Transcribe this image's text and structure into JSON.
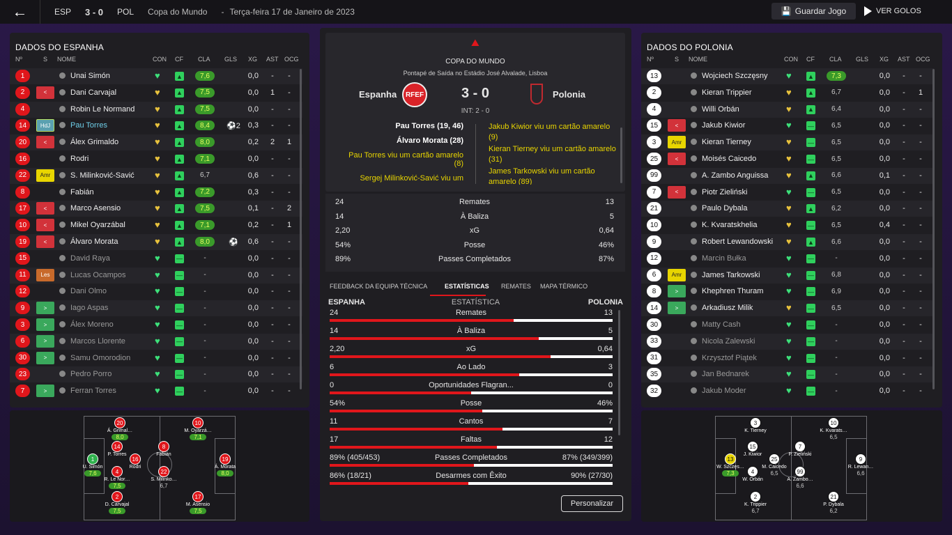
{
  "topbar": {
    "home": "ESP",
    "score": "3 - 0",
    "away": "POL",
    "competition": "Copa do Mundo",
    "sep": "-",
    "date": "Terça-feira 17 de Janeiro de 2023",
    "save": "Guardar Jogo",
    "goals": "VER GOLOS"
  },
  "left": {
    "title": "DADOS DO ESPANHA",
    "headers": {
      "no": "Nº",
      "s": "S",
      "name": "NOME",
      "con": "CON",
      "cf": "CF",
      "cla": "CLA",
      "gls": "GLS",
      "xg": "XG",
      "ast": "AST",
      "ocg": "OCG"
    },
    "players": [
      {
        "n": "1",
        "s": "",
        "name": "Unai Simón",
        "heart": "g",
        "cla": "7,6",
        "gls": "",
        "xg": "0,0",
        "ast": "-",
        "ocg": "-"
      },
      {
        "n": "2",
        "s": "out",
        "name": "Dani Carvajal",
        "heart": "y",
        "cla": "7,5",
        "gls": "",
        "xg": "0,0",
        "ast": "1",
        "ocg": "-"
      },
      {
        "n": "4",
        "s": "",
        "name": "Robin Le Normand",
        "heart": "y",
        "cla": "7,5",
        "gls": "",
        "xg": "0,0",
        "ast": "-",
        "ocg": "-"
      },
      {
        "n": "14",
        "s": "HdJ",
        "name": "Pau Torres",
        "heart": "y",
        "cla": "8,4",
        "gls": "⚽2",
        "xg": "0,3",
        "ast": "-",
        "ocg": "-"
      },
      {
        "n": "20",
        "s": "out",
        "name": "Álex Grimaldo",
        "heart": "y",
        "cla": "8,0",
        "gls": "",
        "xg": "0,2",
        "ast": "2",
        "ocg": "1"
      },
      {
        "n": "16",
        "s": "",
        "name": "Rodri",
        "heart": "y",
        "cla": "7,1",
        "gls": "",
        "xg": "0,0",
        "ast": "-",
        "ocg": "-"
      },
      {
        "n": "22",
        "s": "Amr",
        "name": "S. Milinković-Savić",
        "heart": "y",
        "cla": "6,7",
        "gls": "",
        "xg": "0,6",
        "ast": "-",
        "ocg": "-"
      },
      {
        "n": "8",
        "s": "",
        "name": "Fabián",
        "heart": "y",
        "cla": "7,2",
        "gls": "",
        "xg": "0,3",
        "ast": "-",
        "ocg": "-"
      },
      {
        "n": "17",
        "s": "out",
        "name": "Marco Asensio",
        "heart": "y",
        "cla": "7,5",
        "gls": "",
        "xg": "0,1",
        "ast": "-",
        "ocg": "2"
      },
      {
        "n": "10",
        "s": "out",
        "name": "Mikel Oyarzábal",
        "heart": "y",
        "cla": "7,1",
        "gls": "",
        "xg": "0,2",
        "ast": "-",
        "ocg": "1"
      },
      {
        "n": "19",
        "s": "out",
        "name": "Álvaro Morata",
        "heart": "y",
        "cla": "8,0",
        "gls": "⚽",
        "xg": "0,6",
        "ast": "-",
        "ocg": "-"
      },
      {
        "n": "15",
        "s": "",
        "name": "David Raya",
        "heart": "g",
        "cla": "-",
        "gls": "",
        "xg": "0,0",
        "ast": "-",
        "ocg": "-"
      },
      {
        "n": "11",
        "s": "Les",
        "name": "Lucas Ocampos",
        "heart": "g",
        "cla": "-",
        "gls": "",
        "xg": "0,0",
        "ast": "-",
        "ocg": "-"
      },
      {
        "n": "12",
        "s": "",
        "name": "Dani Olmo",
        "heart": "g",
        "cla": "-",
        "gls": "",
        "xg": "0,0",
        "ast": "-",
        "ocg": "-"
      },
      {
        "n": "9",
        "s": "in",
        "name": "Iago Aspas",
        "heart": "g",
        "cla": "-",
        "gls": "",
        "xg": "0,0",
        "ast": "-",
        "ocg": "-"
      },
      {
        "n": "3",
        "s": "in",
        "name": "Álex Moreno",
        "heart": "g",
        "cla": "-",
        "gls": "",
        "xg": "0,0",
        "ast": "-",
        "ocg": "-"
      },
      {
        "n": "6",
        "s": "in",
        "name": "Marcos Llorente",
        "heart": "g",
        "cla": "-",
        "gls": "",
        "xg": "0,0",
        "ast": "-",
        "ocg": "-"
      },
      {
        "n": "30",
        "s": "in",
        "name": "Samu Omorodion",
        "heart": "g",
        "cla": "-",
        "gls": "",
        "xg": "0,0",
        "ast": "-",
        "ocg": "-"
      },
      {
        "n": "23",
        "s": "",
        "name": "Pedro Porro",
        "heart": "g",
        "cla": "-",
        "gls": "",
        "xg": "0,0",
        "ast": "-",
        "ocg": "-"
      },
      {
        "n": "7",
        "s": "in",
        "name": "Ferran Torres",
        "heart": "g",
        "cla": "-",
        "gls": "",
        "xg": "0,0",
        "ast": "-",
        "ocg": "-"
      }
    ],
    "pitch": [
      {
        "n": "20",
        "name": "Á. Grimal…",
        "r": "8,0",
        "g": 1
      },
      {
        "n": "10",
        "name": "M. Oyarzá…",
        "r": "7,1",
        "g": 1
      },
      {
        "n": "14",
        "name": "P. Torres",
        "r": "",
        "g": 0
      },
      {
        "n": "8",
        "name": "Fabián",
        "r": "",
        "g": 0
      },
      {
        "n": "1",
        "name": "U. Simón",
        "r": "7,6",
        "g": 1,
        "gk": 1
      },
      {
        "n": "16",
        "name": "Rodri",
        "r": "",
        "g": 0
      },
      {
        "n": "19",
        "name": "Á. Morata",
        "r": "8,0",
        "g": 1
      },
      {
        "n": "4",
        "name": "R. Le Nor…",
        "r": "7,5",
        "g": 1
      },
      {
        "n": "22",
        "name": "S. Milinko…",
        "r": "6,7",
        "g": 0
      },
      {
        "n": "2",
        "name": "D. Carvajal",
        "r": "7,5",
        "g": 1
      },
      {
        "n": "17",
        "name": "M. Asensio",
        "r": "7,5",
        "g": 1
      }
    ]
  },
  "right": {
    "title": "DADOS DO POLONIA",
    "headers": {
      "no": "Nº",
      "s": "S",
      "name": "NOME",
      "con": "CON",
      "cf": "CF",
      "cla": "CLA",
      "gls": "GLS",
      "xg": "XG",
      "ast": "AST",
      "ocg": "OCG"
    },
    "players": [
      {
        "n": "13",
        "s": "",
        "name": "Wojciech Szczęsny",
        "heart": "g",
        "cla": "7,3",
        "xg": "0,0",
        "ast": "-",
        "ocg": "-"
      },
      {
        "n": "2",
        "s": "",
        "name": "Kieran Trippier",
        "heart": "y",
        "cla": "6,7",
        "xg": "0,0",
        "ast": "-",
        "ocg": "1"
      },
      {
        "n": "4",
        "s": "",
        "name": "Willi Orbán",
        "heart": "y",
        "cla": "6,4",
        "xg": "0,0",
        "ast": "-",
        "ocg": "-"
      },
      {
        "n": "15",
        "s": "out",
        "name": "Jakub Kiwior",
        "heart": "g",
        "cla": "6,5",
        "xg": "0,0",
        "ast": "-",
        "ocg": "-"
      },
      {
        "n": "3",
        "s": "Amr",
        "name": "Kieran Tierney",
        "heart": "y",
        "cla": "6,5",
        "xg": "0,0",
        "ast": "-",
        "ocg": "-"
      },
      {
        "n": "25",
        "s": "out",
        "name": "Moisés Caicedo",
        "heart": "y",
        "cla": "6,5",
        "xg": "0,0",
        "ast": "-",
        "ocg": "-"
      },
      {
        "n": "99",
        "s": "",
        "name": "A. Zambo Anguissa",
        "heart": "y",
        "cla": "6,6",
        "xg": "0,1",
        "ast": "-",
        "ocg": "-"
      },
      {
        "n": "7",
        "s": "out",
        "name": "Piotr Zieliński",
        "heart": "g",
        "cla": "6,5",
        "xg": "0,0",
        "ast": "-",
        "ocg": "-"
      },
      {
        "n": "21",
        "s": "",
        "name": "Paulo Dybala",
        "heart": "y",
        "cla": "6,2",
        "xg": "0,0",
        "ast": "-",
        "ocg": "-"
      },
      {
        "n": "10",
        "s": "",
        "name": "K. Kvaratskhelia",
        "heart": "y",
        "cla": "6,5",
        "xg": "0,4",
        "ast": "-",
        "ocg": "-"
      },
      {
        "n": "9",
        "s": "",
        "name": "Robert Lewandowski",
        "heart": "y",
        "cla": "6,6",
        "xg": "0,0",
        "ast": "-",
        "ocg": "-"
      },
      {
        "n": "12",
        "s": "",
        "name": "Marcin Bułka",
        "heart": "g",
        "cla": "-",
        "xg": "0,0",
        "ast": "-",
        "ocg": "-"
      },
      {
        "n": "6",
        "s": "Amr",
        "name": "James Tarkowski",
        "heart": "g",
        "cla": "6,8",
        "xg": "0,0",
        "ast": "-",
        "ocg": "-"
      },
      {
        "n": "8",
        "s": "in",
        "name": "Khephren Thuram",
        "heart": "g",
        "cla": "6,9",
        "xg": "0,0",
        "ast": "-",
        "ocg": "-"
      },
      {
        "n": "14",
        "s": "in",
        "name": "Arkadiusz Milik",
        "heart": "y",
        "cla": "6,5",
        "xg": "0,0",
        "ast": "-",
        "ocg": "-"
      },
      {
        "n": "30",
        "s": "",
        "name": "Matty Cash",
        "heart": "g",
        "cla": "-",
        "xg": "0,0",
        "ast": "-",
        "ocg": "-"
      },
      {
        "n": "33",
        "s": "",
        "name": "Nicola Zalewski",
        "heart": "g",
        "cla": "-",
        "xg": "0,0",
        "ast": "-",
        "ocg": "-"
      },
      {
        "n": "31",
        "s": "",
        "name": "Krzysztof Piątek",
        "heart": "g",
        "cla": "-",
        "xg": "0,0",
        "ast": "-",
        "ocg": "-"
      },
      {
        "n": "35",
        "s": "",
        "name": "Jan Bednarek",
        "heart": "g",
        "cla": "-",
        "xg": "0,0",
        "ast": "-",
        "ocg": "-"
      },
      {
        "n": "32",
        "s": "",
        "name": "Jakub Moder",
        "heart": "g",
        "cla": "-",
        "xg": "0,0",
        "ast": "-",
        "ocg": "-"
      }
    ],
    "pitch": [
      {
        "n": "3",
        "name": "K. Tierney",
        "r": ""
      },
      {
        "n": "10",
        "name": "K. Kvarats…",
        "r": "6,5"
      },
      {
        "n": "15",
        "name": "J. Kiwior",
        "r": ""
      },
      {
        "n": "7",
        "name": "P. Zieliński",
        "r": ""
      },
      {
        "n": "13",
        "name": "W. Szczęs…",
        "r": "7,3",
        "gk": 1
      },
      {
        "n": "25",
        "name": "M. Caicedo",
        "r": "6,5"
      },
      {
        "n": "9",
        "name": "R. Lewan…",
        "r": "6,6"
      },
      {
        "n": "4",
        "name": "W. Orbán",
        "r": ""
      },
      {
        "n": "99",
        "name": "A. Zambo…",
        "r": "6,6"
      },
      {
        "n": "2",
        "name": "K. Trippier",
        "r": "6,7"
      },
      {
        "n": "21",
        "name": "P. Dybala",
        "r": "6,2"
      }
    ]
  },
  "match": {
    "comp": "COPA DO MUNDO",
    "venue": "Pontapé de Saída no Estádio José Alvalade, Lisboa",
    "home": "Espanha",
    "away": "Polonia",
    "score": "3 - 0",
    "ht": "INT: 2 - 0",
    "home_events": [
      "Pau Torres (19, 46)",
      "Álvaro Morata (28)",
      "Pau Torres viu um cartão amarelo (8)",
      "Sergej Milinković-Savić viu um"
    ],
    "away_events": [
      "Jakub Kiwior viu um cartão amarelo (9)",
      "Kieran Tierney viu um cartão amarelo (31)",
      "James Tarkowski viu um cartão amarelo (89)"
    ]
  },
  "summary": [
    {
      "l": "24",
      "lab": "Remates",
      "r": "13"
    },
    {
      "l": "14",
      "lab": "À Baliza",
      "r": "5"
    },
    {
      "l": "2,20",
      "lab": "xG",
      "r": "0,64"
    },
    {
      "l": "54%",
      "lab": "Posse",
      "r": "46%"
    },
    {
      "l": "89%",
      "lab": "Passes Completados",
      "r": "87%"
    }
  ],
  "tabs": [
    "FEEDBACK DA EQUIPA TÉCNICA",
    "ESTATÍSTICAS",
    "REMATES",
    "MAPA TÉRMICO"
  ],
  "stats_head": {
    "home": "ESPANHA",
    "mid": "ESTATÍSTICA",
    "away": "POLONIA"
  },
  "stats": [
    {
      "l": "24",
      "lab": "Remates",
      "r": "13",
      "f": 0.65
    },
    {
      "l": "14",
      "lab": "À Baliza",
      "r": "5",
      "f": 0.74
    },
    {
      "l": "2,20",
      "lab": "xG",
      "r": "0,64",
      "f": 0.78
    },
    {
      "l": "6",
      "lab": "Ao Lado",
      "r": "3",
      "f": 0.67
    },
    {
      "l": "0",
      "lab": "Oportunidades Flagran...",
      "r": "0",
      "f": 0.5
    },
    {
      "l": "54%",
      "lab": "Posse",
      "r": "46%",
      "f": 0.54
    },
    {
      "l": "11",
      "lab": "Cantos",
      "r": "7",
      "f": 0.61
    },
    {
      "l": "17",
      "lab": "Faltas",
      "r": "12",
      "f": 0.59
    },
    {
      "l": "89% (405/453)",
      "lab": "Passes Completados",
      "r": "87% (349/399)",
      "f": 0.51
    },
    {
      "l": "86% (18/21)",
      "lab": "Desarmes com Êxito",
      "r": "90% (27/30)",
      "f": 0.49
    }
  ],
  "customize": "Personalizar"
}
